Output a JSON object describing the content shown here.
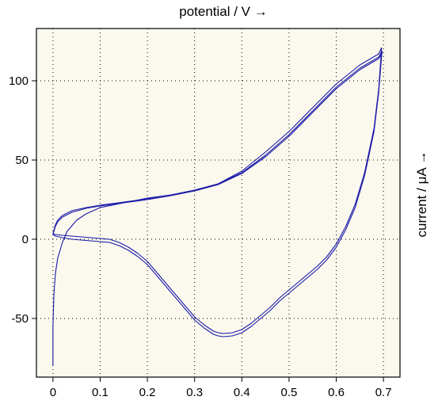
{
  "chart_data": {
    "type": "line",
    "title": "",
    "xlabel": "potential / V →",
    "ylabel": "current / μA →",
    "xlim": [
      -0.035,
      0.735
    ],
    "ylim": [
      -87,
      133
    ],
    "x_ticks": [
      0,
      0.1,
      0.2,
      0.3,
      0.4,
      0.5,
      0.6,
      0.7
    ],
    "x_tick_labels": [
      "0",
      "0.1",
      "0.2",
      "0.3",
      "0.4",
      "0.5",
      "0.6",
      "0.7"
    ],
    "y_ticks": [
      -50,
      0,
      50,
      100
    ],
    "y_tick_labels": [
      "-50",
      "0",
      "50",
      "100"
    ],
    "grid": true,
    "legend": "none",
    "colors": {
      "plot_background": "#fbf8ee",
      "line": "#1a1aa8",
      "grid": "#000000"
    },
    "series": [
      {
        "x": [
          0.0,
          0.0,
          0.002,
          0.005,
          0.01,
          0.02,
          0.03,
          0.05,
          0.07,
          0.1,
          0.15,
          0.2,
          0.25,
          0.3,
          0.35,
          0.4,
          0.45,
          0.5,
          0.55,
          0.6,
          0.65,
          0.69,
          0.696
        ],
        "y": [
          -80,
          -55,
          -35,
          -22,
          -12,
          -2,
          5,
          12,
          16,
          20,
          23,
          26,
          28,
          31,
          35,
          43,
          55,
          68,
          83,
          98,
          110,
          117,
          121
        ]
      },
      {
        "x": [
          0.696,
          0.69,
          0.68,
          0.66,
          0.64,
          0.62,
          0.6,
          0.58,
          0.56,
          0.54,
          0.52,
          0.5,
          0.48,
          0.46,
          0.44,
          0.42,
          0.4,
          0.38,
          0.36,
          0.35,
          0.34,
          0.32,
          0.3,
          0.28,
          0.26,
          0.24,
          0.22,
          0.2,
          0.18,
          0.16,
          0.14,
          0.12,
          0.1,
          0.08,
          0.06,
          0.04,
          0.02,
          0.005,
          0.0
        ],
        "y": [
          121,
          95,
          70,
          42,
          22,
          8,
          -3,
          -11,
          -17,
          -22,
          -27,
          -32,
          -37,
          -43,
          -48,
          -53,
          -57,
          -59,
          -59.5,
          -59,
          -58,
          -54,
          -49,
          -42,
          -35,
          -28,
          -21,
          -14,
          -9,
          -5,
          -2,
          0,
          0.5,
          1,
          1.5,
          2,
          2.5,
          3,
          3.5
        ]
      },
      {
        "x": [
          0.0,
          0.005,
          0.01,
          0.02,
          0.04,
          0.07,
          0.1,
          0.15,
          0.2,
          0.25,
          0.3,
          0.35,
          0.4,
          0.45,
          0.5,
          0.55,
          0.6,
          0.65,
          0.69,
          0.697
        ],
        "y": [
          3.5,
          9,
          12,
          15,
          18,
          20,
          21.5,
          23.5,
          25.5,
          28,
          31,
          35,
          42,
          53,
          66,
          81,
          96,
          108,
          115,
          119
        ]
      },
      {
        "x": [
          0.697,
          0.69,
          0.68,
          0.66,
          0.64,
          0.62,
          0.6,
          0.58,
          0.56,
          0.54,
          0.52,
          0.5,
          0.48,
          0.46,
          0.44,
          0.42,
          0.4,
          0.38,
          0.36,
          0.35,
          0.34,
          0.32,
          0.3,
          0.28,
          0.26,
          0.24,
          0.22,
          0.2,
          0.18,
          0.16,
          0.14,
          0.12,
          0.1,
          0.08,
          0.06,
          0.04,
          0.02,
          0.005,
          0.0
        ],
        "y": [
          119,
          93,
          68,
          40,
          20,
          6,
          -5,
          -13,
          -19,
          -24,
          -29,
          -34,
          -39,
          -45,
          -50,
          -55,
          -59,
          -61,
          -61.5,
          -61,
          -60,
          -56,
          -51,
          -44,
          -37,
          -30,
          -23,
          -16,
          -11,
          -7,
          -4,
          -2,
          -1.5,
          -1,
          -0.5,
          0,
          1,
          2,
          3
        ]
      },
      {
        "x": [
          0.0,
          0.005,
          0.01,
          0.02,
          0.04,
          0.07,
          0.1,
          0.15,
          0.2,
          0.25,
          0.3,
          0.35,
          0.4,
          0.45,
          0.5,
          0.55,
          0.6,
          0.65,
          0.69,
          0.698
        ],
        "y": [
          3,
          8,
          11,
          14,
          17,
          19.5,
          21,
          23,
          25,
          27.5,
          30.5,
          34.5,
          41.5,
          52,
          65,
          80,
          95,
          107,
          114,
          118
        ]
      }
    ]
  }
}
